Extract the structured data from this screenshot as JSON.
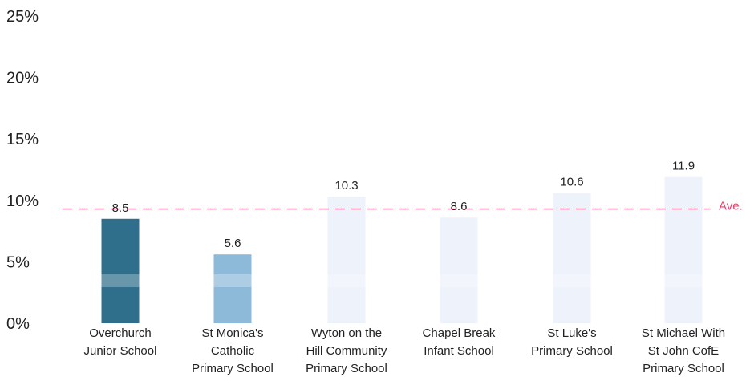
{
  "chart_data": {
    "type": "bar",
    "categories": [
      [
        "Overchurch",
        "Junior School"
      ],
      [
        "St Monica's",
        "Catholic",
        "Primary School"
      ],
      [
        "Wyton on the",
        "Hill Community",
        "Primary School"
      ],
      [
        "Chapel Break",
        "Infant School"
      ],
      [
        "St Luke's",
        "Primary School"
      ],
      [
        "St Michael With",
        "St John CofE",
        "Primary School"
      ]
    ],
    "values": [
      8.5,
      5.6,
      10.3,
      8.6,
      10.6,
      11.9
    ],
    "value_labels": [
      "8.5",
      "5.6",
      "10.3",
      "8.6",
      "10.6",
      "11.9"
    ],
    "bar_colors": [
      "#2f6f8c",
      "#8dbad8",
      "#edf2fb",
      "#edf2fb",
      "#edf2fb",
      "#edf2fb"
    ],
    "ylim": [
      0,
      25
    ],
    "y_ticks": [
      0,
      5,
      10,
      15,
      20,
      25
    ],
    "y_tick_labels": [
      "0%",
      "5%",
      "10%",
      "15%",
      "20%",
      "25%"
    ],
    "reference_line": {
      "label": "Ave.",
      "value": 9.3,
      "color": "#e8426b",
      "style": "dashed"
    },
    "grid": false,
    "legend": "none"
  }
}
